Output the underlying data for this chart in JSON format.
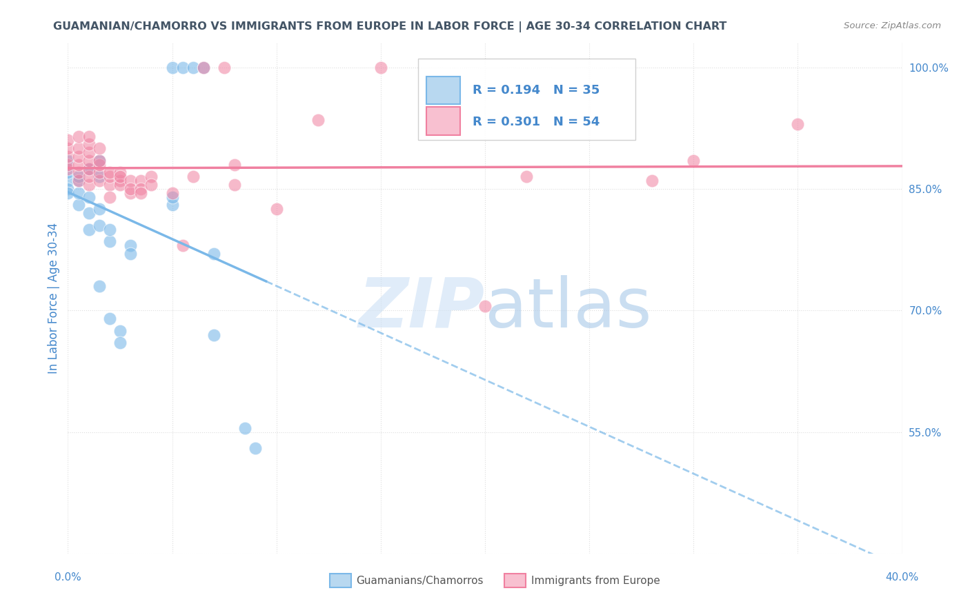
{
  "title": "GUAMANIAN/CHAMORRO VS IMMIGRANTS FROM EUROPE IN LABOR FORCE | AGE 30-34 CORRELATION CHART",
  "source": "Source: ZipAtlas.com",
  "ylabel": "In Labor Force | Age 30-34",
  "ylabel_color": "#4488cc",
  "right_ytick_color": "#4488cc",
  "blue_R": 0.194,
  "blue_N": 35,
  "pink_R": 0.301,
  "pink_N": 54,
  "blue_color": "#7ab8e8",
  "blue_fill": "#b8d8f0",
  "pink_color": "#f080a0",
  "pink_fill": "#f8c0d0",
  "blue_label": "Guamanians/Chamorros",
  "pink_label": "Immigrants from Europe",
  "blue_scatter_x": [
    0.0,
    0.0,
    0.0,
    0.0,
    0.0,
    0.005,
    0.005,
    0.005,
    0.005,
    0.01,
    0.01,
    0.01,
    0.01,
    0.015,
    0.015,
    0.015,
    0.015,
    0.015,
    0.02,
    0.02,
    0.02,
    0.025,
    0.025,
    0.03,
    0.03,
    0.05,
    0.05,
    0.05,
    0.055,
    0.06,
    0.065,
    0.07,
    0.07,
    0.085,
    0.09
  ],
  "blue_scatter_y": [
    86.0,
    87.0,
    88.5,
    85.0,
    84.5,
    83.0,
    84.5,
    86.0,
    86.5,
    82.0,
    84.0,
    87.5,
    80.0,
    88.5,
    86.5,
    82.5,
    80.5,
    73.0,
    69.0,
    78.5,
    80.0,
    67.5,
    66.0,
    78.0,
    77.0,
    83.0,
    84.0,
    100.0,
    100.0,
    100.0,
    100.0,
    77.0,
    67.0,
    55.5,
    53.0
  ],
  "pink_scatter_x": [
    0.0,
    0.0,
    0.0,
    0.0,
    0.0,
    0.005,
    0.005,
    0.005,
    0.005,
    0.005,
    0.005,
    0.01,
    0.01,
    0.01,
    0.01,
    0.01,
    0.01,
    0.01,
    0.015,
    0.015,
    0.015,
    0.015,
    0.015,
    0.02,
    0.02,
    0.02,
    0.02,
    0.025,
    0.025,
    0.025,
    0.025,
    0.03,
    0.03,
    0.03,
    0.035,
    0.035,
    0.035,
    0.04,
    0.04,
    0.05,
    0.055,
    0.06,
    0.065,
    0.075,
    0.08,
    0.08,
    0.1,
    0.12,
    0.15,
    0.2,
    0.22,
    0.28,
    0.3,
    0.35
  ],
  "pink_scatter_y": [
    87.5,
    88.0,
    89.0,
    90.0,
    91.0,
    86.0,
    87.0,
    88.0,
    89.0,
    90.0,
    91.5,
    85.5,
    86.5,
    87.5,
    88.5,
    89.5,
    90.5,
    91.5,
    86.0,
    87.0,
    88.0,
    88.5,
    90.0,
    85.5,
    86.5,
    87.0,
    84.0,
    86.0,
    87.0,
    85.5,
    86.5,
    84.5,
    86.0,
    85.0,
    86.0,
    85.0,
    84.5,
    86.5,
    85.5,
    84.5,
    78.0,
    86.5,
    100.0,
    100.0,
    85.5,
    88.0,
    82.5,
    93.5,
    100.0,
    70.5,
    86.5,
    86.0,
    88.5,
    93.0
  ],
  "xlim": [
    0.0,
    0.4
  ],
  "ylim": [
    40.0,
    103.0
  ],
  "right_yticks": [
    100.0,
    85.0,
    70.0,
    55.0
  ],
  "grid_color": "#dddddd",
  "watermark_color": "#cce0f5",
  "watermark_alpha": 0.6
}
